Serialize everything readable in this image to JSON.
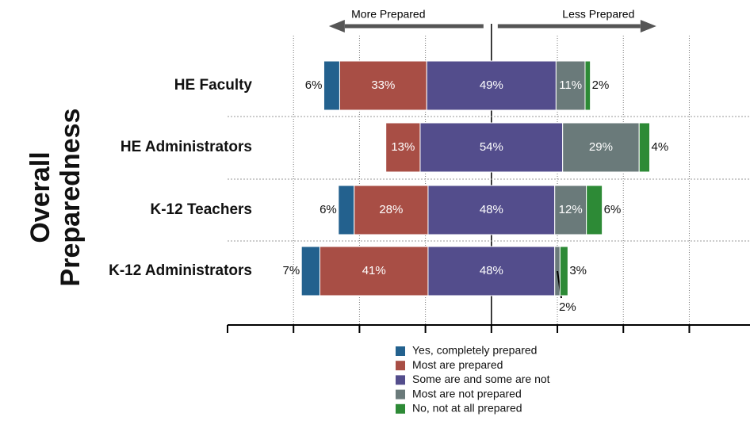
{
  "chart_data": {
    "type": "diverging_bar",
    "y_label": "Overall Preparedness",
    "annotations": [
      "More Prepared",
      "Less Prepared"
    ],
    "categories": [
      "HE Faculty",
      "HE Administrators",
      "K-12 Teachers",
      "K-12 Administrators"
    ],
    "neutral_series": 2,
    "series": [
      {
        "name": "Yes, completely prepared",
        "color": "#23618e",
        "values": [
          6,
          null,
          6,
          7
        ],
        "value_labels": [
          "6%",
          null,
          "6%",
          "7%"
        ]
      },
      {
        "name": "Most are prepared",
        "color": "#a84e45",
        "values": [
          33,
          13,
          28,
          41
        ],
        "value_labels": [
          "33%",
          "13%",
          "28%",
          "41%"
        ]
      },
      {
        "name": "Some are and some are not",
        "color": "#534d8c",
        "values": [
          49,
          54,
          48,
          48
        ],
        "value_labels": [
          "49%",
          "54%",
          "48%",
          "48%"
        ]
      },
      {
        "name": "Most are not prepared",
        "color": "#6a7a7a",
        "values": [
          11,
          29,
          12,
          2
        ],
        "value_labels": [
          "11%",
          "29%",
          "12%",
          "2%"
        ]
      },
      {
        "name": "No, not at all prepared",
        "color": "#2d8a36",
        "values": [
          2,
          4,
          6,
          3
        ],
        "value_labels": [
          "2%",
          "4%",
          "6%",
          "3%"
        ]
      }
    ],
    "xlim": [
      -100,
      98
    ],
    "xticks": [
      -100,
      -75,
      -50,
      -25,
      0,
      25,
      50,
      75
    ]
  }
}
